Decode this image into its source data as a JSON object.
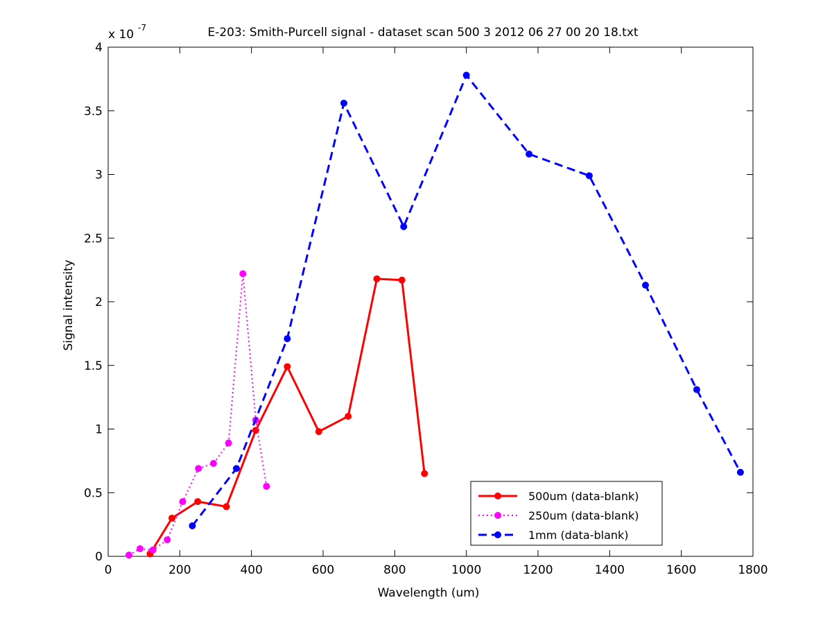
{
  "chart_data": {
    "type": "line",
    "title": "E-203: Smith-Purcell signal - dataset scan 500 3 2012 06 27 00 20 18.txt",
    "xlabel": "Wavelength (um)",
    "ylabel": "Signal intensity",
    "y_exponent_label": "x 10",
    "y_exponent_power": "-7",
    "xlim": [
      0,
      1800
    ],
    "ylim": [
      0,
      4
    ],
    "x_ticks": [
      0,
      200,
      400,
      600,
      800,
      1000,
      1200,
      1400,
      1600,
      1800
    ],
    "x_tick_labels": [
      "0",
      "200",
      "400",
      "600",
      "800",
      "1000",
      "1200",
      "1400",
      "1600",
      "1800"
    ],
    "y_ticks": [
      0,
      0.5,
      1,
      1.5,
      2,
      2.5,
      3,
      3.5,
      4
    ],
    "y_tick_labels": [
      "0",
      "0.5",
      "1",
      "1.5",
      "2",
      "2.5",
      "3",
      "3.5",
      "4"
    ],
    "grid": false,
    "legend_position": "bottom-right",
    "series": [
      {
        "name": "500um (data-blank)",
        "color": "#ff0000",
        "line_style": "solid",
        "line_width": 3,
        "x": [
          117,
          178,
          250,
          330,
          412,
          500,
          588,
          670,
          750,
          820,
          883
        ],
        "y": [
          0.02,
          0.3,
          0.43,
          0.39,
          0.99,
          1.49,
          0.98,
          1.1,
          2.18,
          2.17,
          0.65
        ]
      },
      {
        "name": "250um (data-blank)",
        "color": "#ff00ff",
        "line_style": "dotted",
        "line_width": 2,
        "x": [
          58,
          89,
          125,
          165,
          208,
          252,
          294,
          336,
          376,
          412,
          442
        ],
        "y": [
          0.01,
          0.06,
          0.05,
          0.13,
          0.43,
          0.69,
          0.73,
          0.89,
          2.22,
          1.07,
          0.55
        ]
      },
      {
        "name": "1mm (data-blank)",
        "color": "#0000ff",
        "line_style": "dashed",
        "line_width": 3,
        "x": [
          235,
          358,
          500,
          658,
          825,
          1000,
          1175,
          1343,
          1500,
          1643,
          1765
        ],
        "y": [
          0.24,
          0.69,
          1.71,
          3.56,
          2.59,
          3.78,
          3.16,
          2.99,
          2.13,
          1.31,
          0.66
        ]
      }
    ]
  }
}
